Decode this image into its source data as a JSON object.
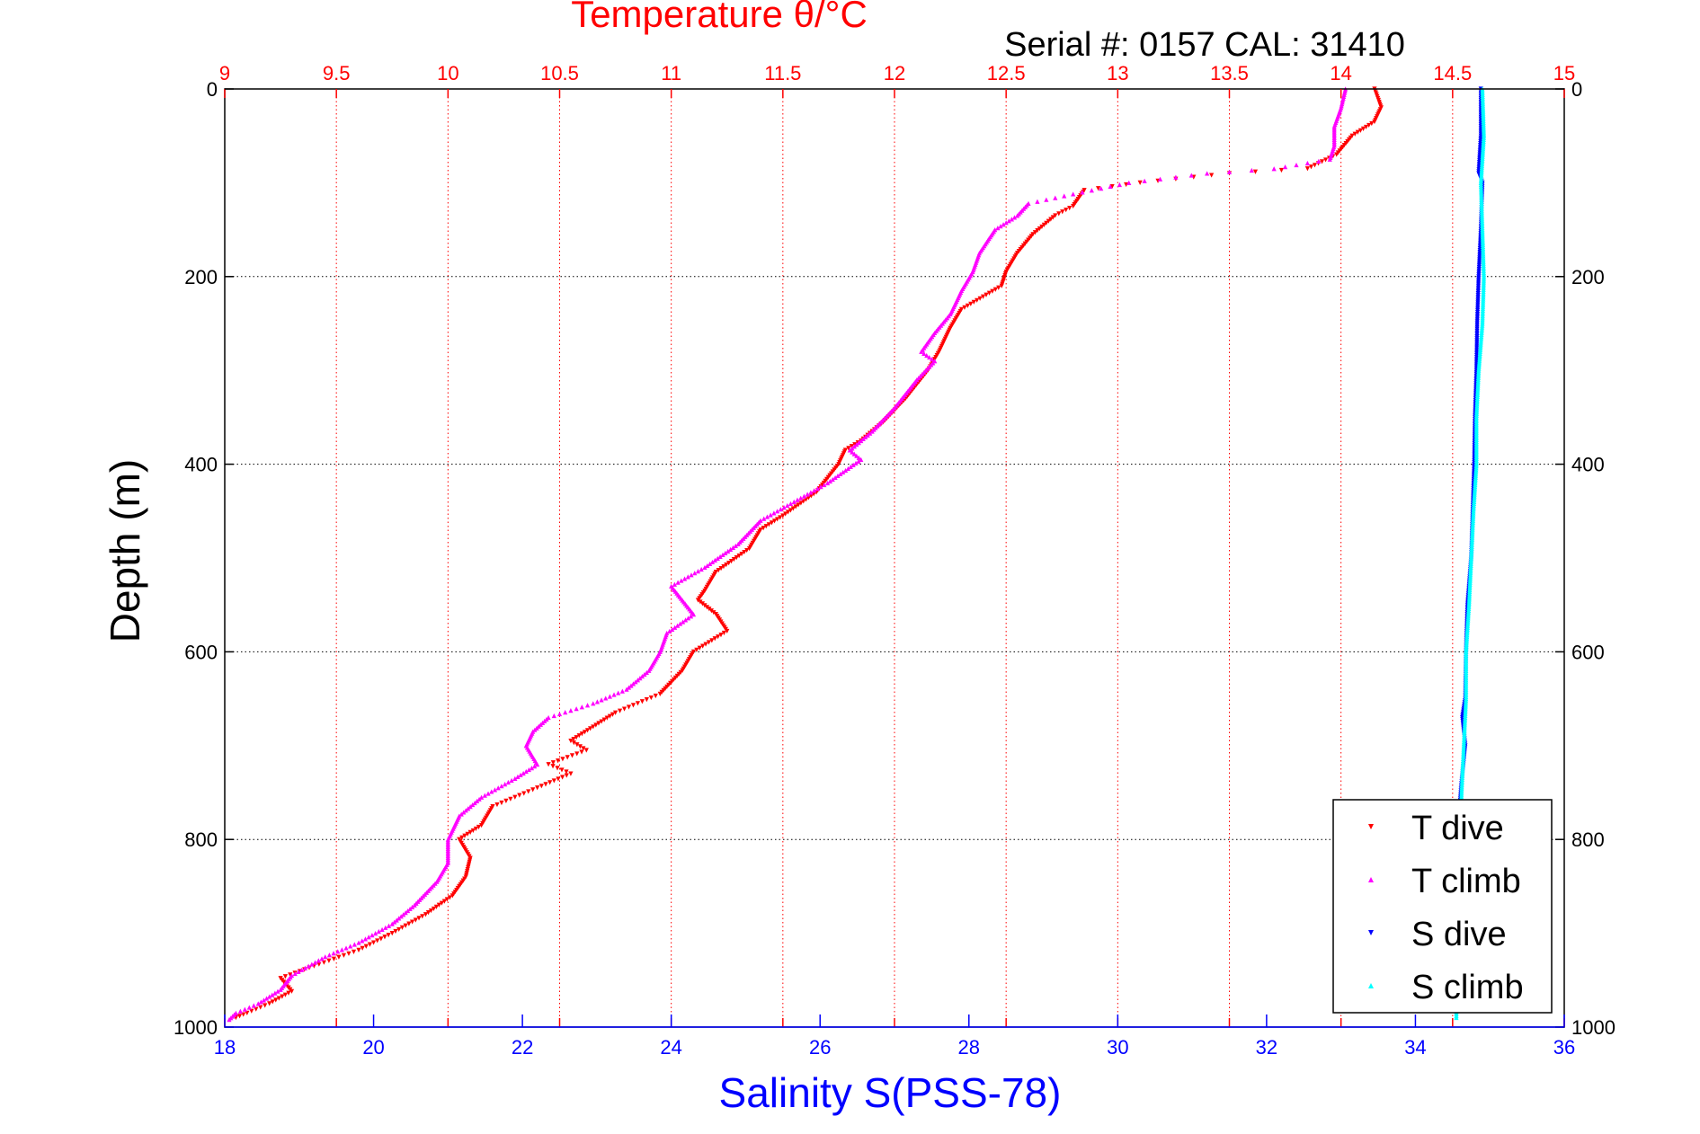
{
  "chart_data": {
    "type": "scatter",
    "title": "Temperature θ/°C",
    "subtitle": "Serial #: 0157  CAL: 31410",
    "ylabel": "Depth (m)",
    "xlabel_bottom": "Salinity S(PSS-78)",
    "top_axis": {
      "range": [
        9,
        15
      ],
      "ticks": [
        9,
        9.5,
        10,
        10.5,
        11,
        11.5,
        12,
        12.5,
        13,
        13.5,
        14,
        14.5,
        15
      ],
      "tick_labels": [
        "9",
        "9.5",
        "10",
        "10.5",
        "11",
        "11.5",
        "12",
        "12.5",
        "13",
        "13.5",
        "14",
        "14.5",
        "15"
      ],
      "color": "#ff0000"
    },
    "bottom_axis": {
      "range": [
        18,
        36
      ],
      "ticks": [
        18,
        20,
        22,
        24,
        26,
        28,
        30,
        32,
        34,
        36
      ],
      "tick_labels": [
        "18",
        "20",
        "22",
        "24",
        "26",
        "28",
        "30",
        "32",
        "34",
        "36"
      ],
      "color": "#0000ff"
    },
    "y_axis": {
      "range": [
        0,
        1000
      ],
      "reversed": true,
      "ticks": [
        0,
        200,
        400,
        600,
        800,
        1000
      ],
      "tick_labels": [
        "0",
        "200",
        "400",
        "600",
        "800",
        "1000"
      ]
    },
    "grid": true,
    "legend_position": "bottom-right",
    "series": [
      {
        "name": "T dive",
        "axis": "top",
        "color": "#ff0000",
        "marker": "triangle-down",
        "points": [
          [
            14.15,
            0
          ],
          [
            14.18,
            20
          ],
          [
            14.15,
            35
          ],
          [
            14.05,
            50
          ],
          [
            13.98,
            70
          ],
          [
            13.85,
            85
          ],
          [
            13.5,
            90
          ],
          [
            13.1,
            100
          ],
          [
            12.85,
            108
          ],
          [
            12.8,
            125
          ],
          [
            12.72,
            135
          ],
          [
            12.62,
            155
          ],
          [
            12.55,
            175
          ],
          [
            12.5,
            195
          ],
          [
            12.48,
            210
          ],
          [
            12.3,
            235
          ],
          [
            12.25,
            255
          ],
          [
            12.2,
            280
          ],
          [
            12.15,
            300
          ],
          [
            12.05,
            330
          ],
          [
            11.95,
            355
          ],
          [
            11.85,
            375
          ],
          [
            11.78,
            385
          ],
          [
            11.75,
            400
          ],
          [
            11.65,
            430
          ],
          [
            11.5,
            455
          ],
          [
            11.4,
            470
          ],
          [
            11.35,
            490
          ],
          [
            11.2,
            515
          ],
          [
            11.15,
            535
          ],
          [
            11.12,
            545
          ],
          [
            11.2,
            560
          ],
          [
            11.25,
            578
          ],
          [
            11.1,
            600
          ],
          [
            11.05,
            620
          ],
          [
            10.95,
            645
          ],
          [
            10.75,
            665
          ],
          [
            10.65,
            680
          ],
          [
            10.55,
            695
          ],
          [
            10.62,
            705
          ],
          [
            10.45,
            720
          ],
          [
            10.55,
            730
          ],
          [
            10.4,
            745
          ],
          [
            10.2,
            765
          ],
          [
            10.15,
            785
          ],
          [
            10.05,
            800
          ],
          [
            10.1,
            820
          ],
          [
            10.08,
            840
          ],
          [
            10.02,
            860
          ],
          [
            9.9,
            880
          ],
          [
            9.75,
            900
          ],
          [
            9.6,
            918
          ],
          [
            9.4,
            935
          ],
          [
            9.25,
            948
          ],
          [
            9.3,
            962
          ],
          [
            9.2,
            975
          ],
          [
            9.1,
            985
          ],
          [
            9.05,
            990
          ]
        ]
      },
      {
        "name": "T climb",
        "axis": "top",
        "color": "#ff00ff",
        "marker": "triangle-up",
        "points": [
          [
            14.02,
            0
          ],
          [
            14.0,
            20
          ],
          [
            13.97,
            40
          ],
          [
            13.97,
            60
          ],
          [
            13.95,
            75
          ],
          [
            13.7,
            85
          ],
          [
            13.4,
            90
          ],
          [
            13.05,
            100
          ],
          [
            12.8,
            112
          ],
          [
            12.6,
            122
          ],
          [
            12.55,
            135
          ],
          [
            12.45,
            150
          ],
          [
            12.38,
            175
          ],
          [
            12.35,
            195
          ],
          [
            12.3,
            215
          ],
          [
            12.25,
            240
          ],
          [
            12.18,
            260
          ],
          [
            12.12,
            280
          ],
          [
            12.18,
            290
          ],
          [
            12.1,
            310
          ],
          [
            12.0,
            340
          ],
          [
            11.9,
            365
          ],
          [
            11.8,
            385
          ],
          [
            11.85,
            395
          ],
          [
            11.7,
            420
          ],
          [
            11.55,
            440
          ],
          [
            11.4,
            460
          ],
          [
            11.3,
            485
          ],
          [
            11.15,
            510
          ],
          [
            11.0,
            530
          ],
          [
            11.05,
            545
          ],
          [
            11.1,
            560
          ],
          [
            10.98,
            580
          ],
          [
            10.95,
            600
          ],
          [
            10.9,
            620
          ],
          [
            10.8,
            640
          ],
          [
            10.65,
            655
          ],
          [
            10.45,
            670
          ],
          [
            10.38,
            685
          ],
          [
            10.35,
            700
          ],
          [
            10.4,
            720
          ],
          [
            10.3,
            735
          ],
          [
            10.15,
            755
          ],
          [
            10.05,
            775
          ],
          [
            10.0,
            800
          ],
          [
            10.0,
            825
          ],
          [
            9.95,
            845
          ],
          [
            9.85,
            870
          ],
          [
            9.75,
            890
          ],
          [
            9.6,
            910
          ],
          [
            9.45,
            925
          ],
          [
            9.3,
            945
          ],
          [
            9.25,
            960
          ],
          [
            9.15,
            975
          ],
          [
            9.05,
            985
          ],
          [
            9.02,
            992
          ]
        ]
      },
      {
        "name": "S dive",
        "axis": "bottom",
        "color": "#0000ff",
        "marker": "triangle-down",
        "points": [
          [
            34.88,
            0
          ],
          [
            34.88,
            50
          ],
          [
            34.85,
            90
          ],
          [
            34.9,
            100
          ],
          [
            34.88,
            150
          ],
          [
            34.85,
            200
          ],
          [
            34.83,
            250
          ],
          [
            34.82,
            300
          ],
          [
            34.8,
            350
          ],
          [
            34.79,
            400
          ],
          [
            34.77,
            450
          ],
          [
            34.75,
            500
          ],
          [
            34.7,
            550
          ],
          [
            34.68,
            600
          ],
          [
            34.67,
            650
          ],
          [
            34.63,
            670
          ],
          [
            34.67,
            700
          ],
          [
            34.62,
            740
          ],
          [
            34.6,
            760
          ]
        ]
      },
      {
        "name": "S climb",
        "axis": "bottom",
        "color": "#00ffff",
        "marker": "triangle-up",
        "points": [
          [
            34.9,
            0
          ],
          [
            34.92,
            50
          ],
          [
            34.88,
            100
          ],
          [
            34.9,
            150
          ],
          [
            34.92,
            200
          ],
          [
            34.9,
            250
          ],
          [
            34.85,
            300
          ],
          [
            34.82,
            350
          ],
          [
            34.82,
            400
          ],
          [
            34.78,
            450
          ],
          [
            34.75,
            500
          ],
          [
            34.72,
            550
          ],
          [
            34.68,
            600
          ],
          [
            34.68,
            650
          ],
          [
            34.65,
            700
          ],
          [
            34.62,
            750
          ],
          [
            34.6,
            800
          ],
          [
            34.58,
            850
          ],
          [
            34.57,
            900
          ],
          [
            34.55,
            950
          ],
          [
            34.55,
            990
          ]
        ]
      }
    ]
  }
}
